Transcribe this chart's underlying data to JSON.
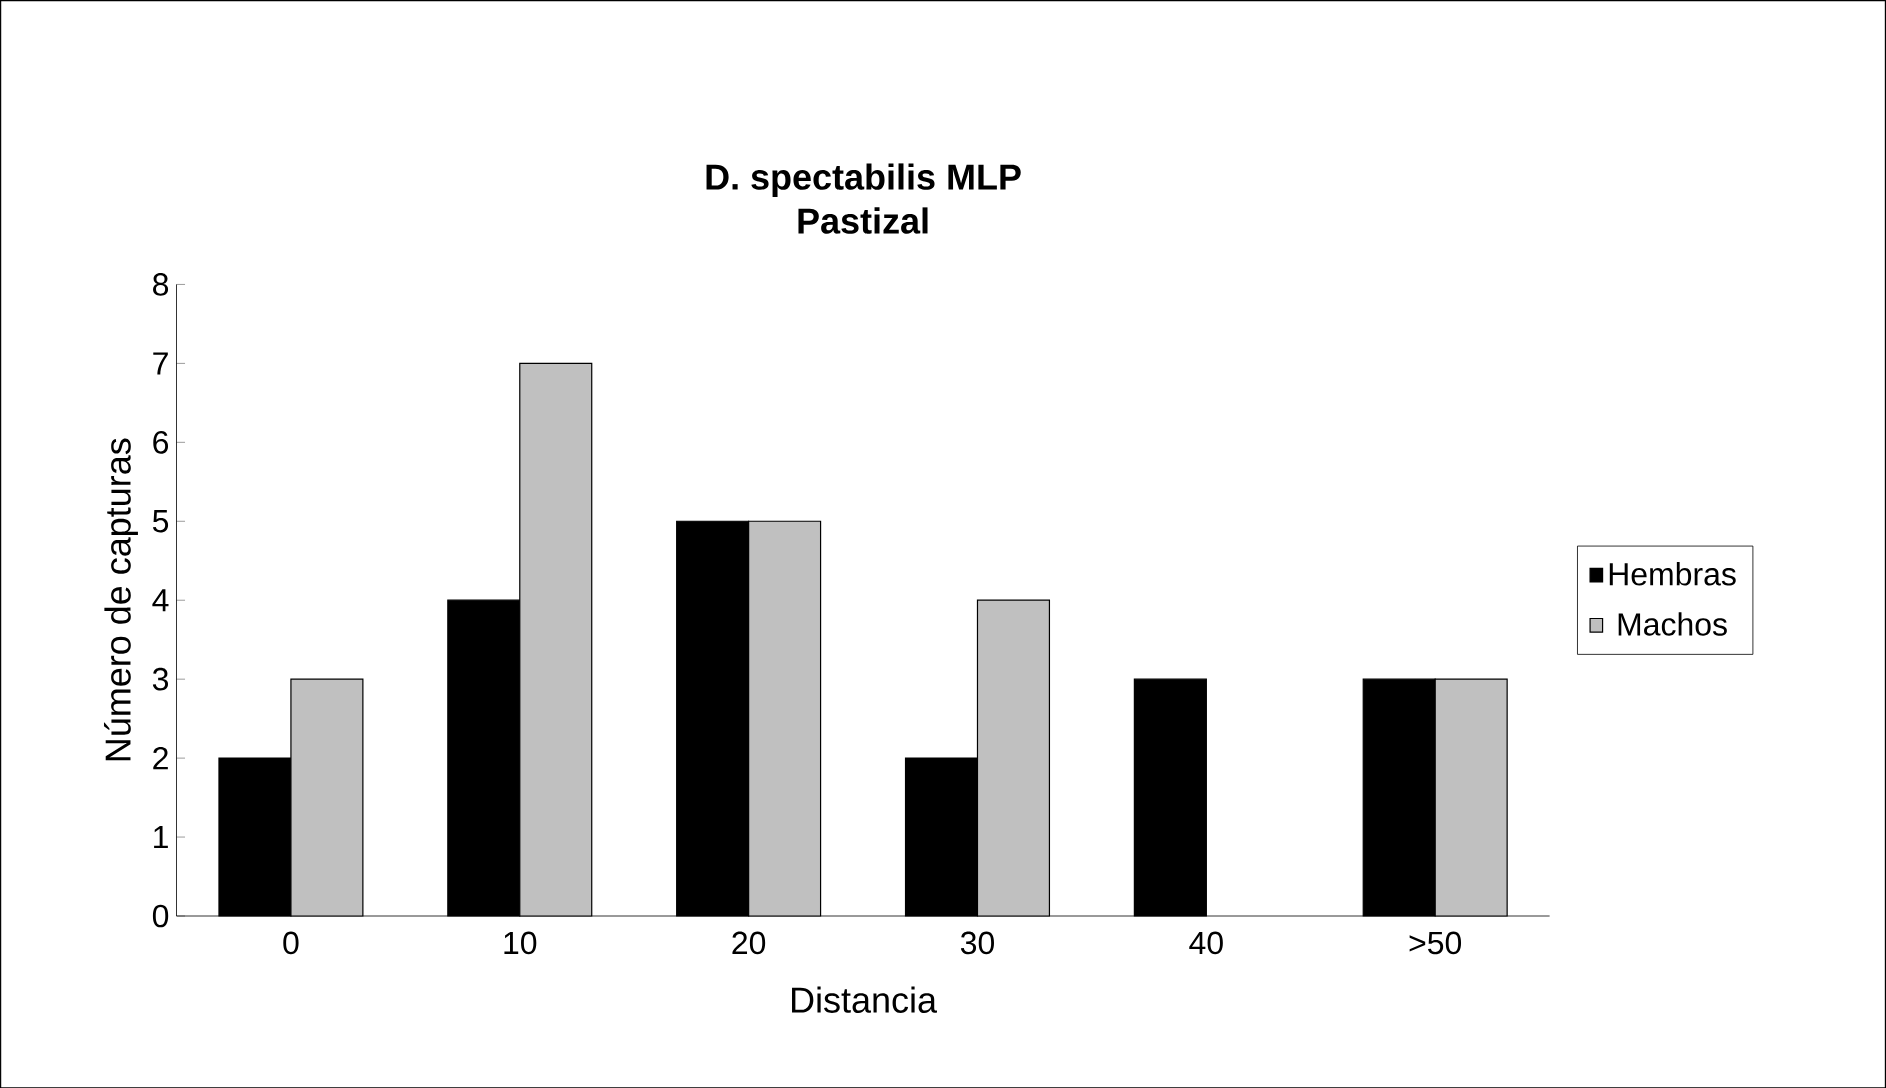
{
  "chart_data": {
    "type": "bar",
    "title": "D. spectabilis MLP",
    "subtitle": "Pastizal",
    "xlabel": "Distancia",
    "ylabel": "Número de capturas",
    "categories": [
      "0",
      "10",
      "20",
      "30",
      "40",
      ">50"
    ],
    "series": [
      {
        "name": "Hembras",
        "color": "#000000",
        "values": [
          2,
          4,
          5,
          2,
          3,
          3
        ]
      },
      {
        "name": "Machos",
        "color": "#c0c0c0",
        "values": [
          3,
          7,
          5,
          4,
          null,
          3
        ]
      }
    ],
    "ylim": [
      0,
      8
    ],
    "yticks": [
      0,
      1,
      2,
      3,
      4,
      5,
      6,
      7,
      8
    ],
    "grid": false,
    "legend": "right"
  }
}
